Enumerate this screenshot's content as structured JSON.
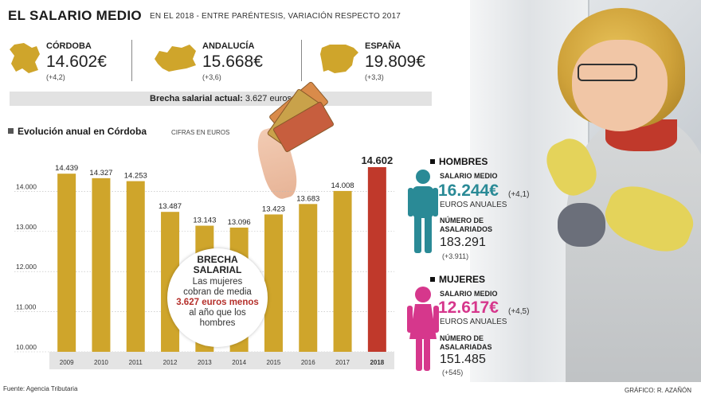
{
  "header": {
    "title": "EL SALARIO MEDIO",
    "subtitle": "EN EL 2018 - ENTRE PARÉNTESIS, VARIACIÓN RESPECTO 2017"
  },
  "regions": [
    {
      "name": "CÓRDOBA",
      "value": "14.602€",
      "change": "(+4,2)"
    },
    {
      "name": "ANDALUCÍA",
      "value": "15.668€",
      "change": "(+3,6)"
    },
    {
      "name": "ESPAÑA",
      "value": "19.809€",
      "change": "(+3,3)"
    }
  ],
  "gap": {
    "label": "Brecha salarial actual:",
    "value": "3.627 euros"
  },
  "section": {
    "title": "Evolución anual en Córdoba",
    "note": "CIFRAS EN EUROS"
  },
  "bubble": {
    "title1": "BRECHA",
    "title2": "SALARIAL",
    "line1": "Las mujeres",
    "line2": "cobran de media",
    "highlight": "3.627 euros menos",
    "line3": "al año que los",
    "line4": "hombres"
  },
  "men": {
    "heading": "HOMBRES",
    "salary_label": "SALARIO MEDIO",
    "salary": "16.244€",
    "salary_change": "(+4,1)",
    "units": "EUROS ANUALES",
    "workers_label1": "NÚMERO DE",
    "workers_label2": "ASALARIADOS",
    "workers": "183.291",
    "workers_change": "(+3.911)",
    "color": "#2a8a96"
  },
  "women": {
    "heading": "MUJERES",
    "salary_label": "SALARIO MEDIO",
    "salary": "12.617€",
    "salary_change": "(+4,5)",
    "units": "EUROS ANUALES",
    "workers_label1": "NÚMERO DE",
    "workers_label2": "ASALARIADAS",
    "workers": "151.485",
    "workers_change": "(+545)",
    "color": "#d6378c"
  },
  "footer": {
    "source": "Fuente: Agencia Tributaria",
    "credit": "GRÁFICO: R. AZAÑÓN"
  },
  "chart_data": {
    "type": "bar",
    "title": "Evolución anual en Córdoba",
    "subtitle": "CIFRAS EN EUROS",
    "categories": [
      "2009",
      "2010",
      "2011",
      "2012",
      "2013",
      "2014",
      "2015",
      "2016",
      "2017",
      "2018"
    ],
    "values": [
      14439,
      14327,
      14253,
      13487,
      13143,
      13096,
      13423,
      13683,
      14008,
      14602
    ],
    "labels": [
      "14.439",
      "14.327",
      "14.253",
      "13.487",
      "13.143",
      "13.096",
      "13.423",
      "13.683",
      "14.008",
      "14.602"
    ],
    "yticks": [
      10000,
      11000,
      12000,
      13000,
      14000
    ],
    "ytick_labels": [
      "10.000",
      "11.000",
      "12.000",
      "13.000",
      "14.000"
    ],
    "ylim": [
      10000,
      14800
    ],
    "bar_color": "#cfa52b",
    "highlight_color": "#c0392b",
    "highlight_index": 9,
    "xlabel": "",
    "ylabel": ""
  }
}
